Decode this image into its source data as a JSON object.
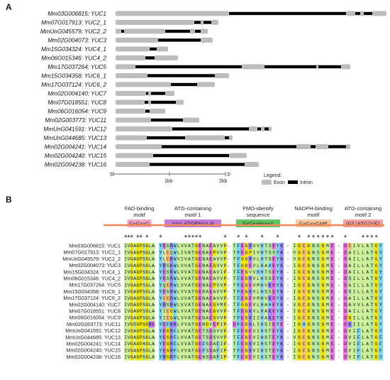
{
  "panel_a": {
    "label": "A",
    "genes": [
      "Mm03G006815: YUC1",
      "Mm07G017913: YUC2_1",
      "MmUnG045579: YUC2_2",
      "Mm02G004073: YUC3",
      "Mm15G034324: YUC4_1",
      "Mm06G015346: YUC4_2",
      "Mm17G037264: YUC5",
      "Mm15G034358: YUC6_1",
      "Mm17G037124: YUC6_2",
      "Mm02G004140: YUC7",
      "Mm07G018551: YUC8",
      "Mm06G016054: YUC9",
      "Mm02G003773: YUC11",
      "MmUnG041591: YUC12",
      "MmUnG044685: YUC13",
      "Mm02G004241: YUC14",
      "Mm02G004240: YUC15",
      "Mm02G004238: YUC16"
    ],
    "scale": {
      "five_prime": "5'",
      "three_prime": "3'",
      "tick1": "1kb",
      "tick2": "2kb"
    },
    "legend": {
      "title": "Legend:",
      "exon": "Exon",
      "intron": "Intron"
    },
    "colors": {
      "exon": "#bdbdbd",
      "intron": "#000000"
    }
  },
  "panel_b": {
    "label": "B",
    "motifs": [
      {
        "title1": "FAD-binding",
        "title2": "motif",
        "seq": "GxGxxG",
        "color": "#f4a3c8"
      },
      {
        "title1": "ATG-containing",
        "title2": "motif 1",
        "seq": "Y(x)₂ATGEN(x)₅P",
        "color": "#c67bd6"
      },
      {
        "title1": "FMO-identify",
        "title2": "sequence",
        "seq": "FxGxxHxxxY",
        "color": "#62c462"
      },
      {
        "title1": "NADPH-binding",
        "title2": "motif",
        "seq": "GxGxxGME",
        "color": "#f9c9a0"
      },
      {
        "title1": "ATG-containing",
        "title2": "motif 2",
        "seq": "(F/L)ATG(Y/F)",
        "color": "#f6a2a2"
      }
    ],
    "sequences": [
      {
        "name": "Mm03G006815: YUC1",
        "blocks": [
          "IVGAGPSGLA",
          "YESRWLVVATGENAEAVVP",
          "TFEGRVVHTSEYK",
          "IGCGNSGME",
          "DCIVLATGY"
        ]
      },
      {
        "name": "Mm07G017913: YUC2_1",
        "blocks": [
          "IVGAGPSGLA",
          "YLCQWLIVATGENAEPVVP",
          "TFEGPIVHTSSYK",
          "VGCGNSGME",
          "DAILLATGY"
        ]
      },
      {
        "name": "MmUnG045579: YUC2_2",
        "blocks": [
          "IVGAGPSGLA",
          "YLCRWVIVATGENAEAVVP",
          "TFGGRVLHTSEYK",
          "VGCGNSGME",
          "DAILLATGY"
        ]
      },
      {
        "name": "Mm02G004073: YUC3",
        "blocks": [
          "IVGAGPSGLA",
          "YRSKWLVVATGENAEGVVP",
          "TFGGEVLHAHEYK",
          "IGCGNSGME",
          "DAILLATGY"
        ]
      },
      {
        "name": "Mm15G034324: YUC4_1",
        "blocks": [
          "IVGAGPSGLA",
          "YESRWLVVATGENAEAVIP",
          "TFEGVVHHTSEYK",
          "IGCGNSGME",
          "DAILLATGY"
        ]
      },
      {
        "name": "Mm06G015346: YUC4_2",
        "blocks": [
          "IVGAGPSGLA",
          "YESRWLVVATGENAEAVVP",
          "TFEGKVLHSSEYK",
          "IGCGNSGME",
          "DSILLATGY"
        ]
      },
      {
        "name": "Mm17G037264: YUC5",
        "blocks": [
          "IVGAGPSGLA",
          "YQCRWLVVATGENAEPVVP",
          "TFEGEVMHVKDYK",
          "IGCGNSGME",
          "DAILLATGY"
        ]
      },
      {
        "name": "Mm15G034358: YUC6_1",
        "blocks": [
          "IVGAGPSGLA",
          "YESRWLVVATGENAEAVVP",
          "TFEGKVLHSSEYK",
          "IGCGNSGME",
          "DSILLATGY"
        ]
      },
      {
        "name": "Mm17G037124: YUC6_2",
        "blocks": [
          "IVGAGPSGLA",
          "YCCRWLVVATGENAEAVVP",
          "TFEGEVMHVKDYK",
          "IGCGNSGME",
          "DAILLATGY"
        ]
      },
      {
        "name": "Mm02G004140: YUC7",
        "blocks": [
          "IVGAGPSGLA",
          "YRSRWLVVATGENAEGVMP",
          "TFGGEVLHAHEYK",
          "VGCGNSGME",
          "DAVVLATGY"
        ]
      },
      {
        "name": "Mm07G018551: YUC8",
        "blocks": [
          "IVGAGPSGLA",
          "YICGWLVVATGENAEGVVP",
          "TFEGKVLHAKEYK",
          "IGCGNSGME",
          "DAILLATGY"
        ]
      },
      {
        "name": "Mm06G016054: YUC9",
        "blocks": [
          "IVGAGPSGLA",
          "YICGWLVVATGENAEGVVP",
          "TFEGRIIHAKEYK",
          "IGCGNSGME",
          "DGILLATGY"
        ]
      },
      {
        "name": "Mm02G003773: YUC11",
        "blocks": [
          "IVGSGPGGRE",
          "YEFKRLVVATGENGVEPIP",
          "DFEGKLIHSIEYE",
          "IGHGNSGME",
          "DKIILATGY"
        ]
      },
      {
        "name": "MmUnG041591: YUC12",
        "blocks": [
          "IVGAGPSGLA",
          "YEGRFLVVATGETSDSVVP",
          "TFEGEVIHSTEYK",
          "IGCGNSGME",
          "DVIFLATGY"
        ]
      },
      {
        "name": "MmUnG044685: YUC13",
        "blocks": [
          "IVGAGPSGLA",
          "YEGRFLVVATGETSDSVVP",
          "TFEGEVIHSTEYK",
          "VGCGNSGME",
          "DVIFLATGF"
        ]
      },
      {
        "name": "Mm02G004241: YUC14",
        "blocks": [
          "IVGAGPAGLA",
          "YEGRFLVVATGEFSDAFIP",
          "TFEGKVIHSTEYK",
          "IGCGNSGME",
          "DVIFLATGF"
        ]
      },
      {
        "name": "Mm02G004240: YUC15",
        "blocks": [
          "IVGAGPSGLA",
          "YEGRFLVVATGEFSDAFIP",
          "TFEGKVIHSTEYK",
          "IGCGNSGME",
          "DVIFLATGF"
        ]
      },
      {
        "name": "Mm02G004238: YUC16",
        "blocks": [
          "IVGAGPSGLA",
          "YRGRFLVVATGENSDAFIP",
          "TFEGEVIHSTEYK",
          "IGCGNSGME",
          "DVIFLATGY"
        ]
      }
    ]
  }
}
